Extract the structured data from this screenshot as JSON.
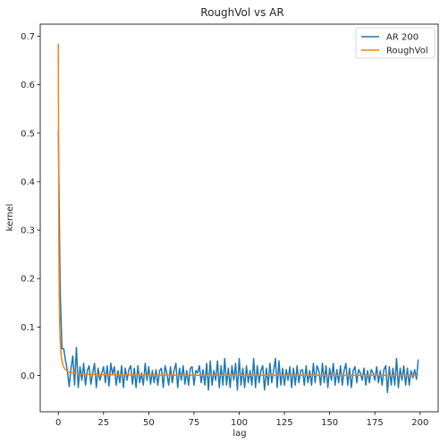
{
  "chart_data": {
    "type": "line",
    "title": "RoughVol vs AR",
    "xlabel": "lag",
    "ylabel": "kernel",
    "xlim": [
      -10,
      210
    ],
    "ylim": [
      -0.075,
      0.725
    ],
    "xticks": [
      0,
      25,
      50,
      75,
      100,
      125,
      150,
      175,
      200
    ],
    "yticks": [
      0.0,
      0.1,
      0.2,
      0.3,
      0.4,
      0.5,
      0.6,
      0.7
    ],
    "ytick_labels": [
      "0.0",
      "0.1",
      "0.2",
      "0.3",
      "0.4",
      "0.5",
      "0.6",
      "0.7"
    ],
    "grid": false,
    "legend_position": "top-right",
    "series": [
      {
        "name": "AR 200",
        "color": "#1f77b4",
        "x": [
          0,
          1,
          2,
          3,
          4,
          5,
          6,
          7,
          8,
          9,
          10,
          11,
          12,
          13,
          14,
          15,
          16,
          17,
          18,
          19,
          20,
          21,
          22,
          23,
          24,
          25,
          26,
          27,
          28,
          29,
          30,
          31,
          32,
          33,
          34,
          35,
          36,
          37,
          38,
          39,
          40,
          41,
          42,
          43,
          44,
          45,
          46,
          47,
          48,
          49,
          50,
          51,
          52,
          53,
          54,
          55,
          56,
          57,
          58,
          59,
          60,
          61,
          62,
          63,
          64,
          65,
          66,
          67,
          68,
          69,
          70,
          71,
          72,
          73,
          74,
          75,
          76,
          77,
          78,
          79,
          80,
          81,
          82,
          83,
          84,
          85,
          86,
          87,
          88,
          89,
          90,
          91,
          92,
          93,
          94,
          95,
          96,
          97,
          98,
          99,
          100,
          101,
          102,
          103,
          104,
          105,
          106,
          107,
          108,
          109,
          110,
          111,
          112,
          113,
          114,
          115,
          116,
          117,
          118,
          119,
          120,
          121,
          122,
          123,
          124,
          125,
          126,
          127,
          128,
          129,
          130,
          131,
          132,
          133,
          134,
          135,
          136,
          137,
          138,
          139,
          140,
          141,
          142,
          143,
          144,
          145,
          146,
          147,
          148,
          149,
          150,
          151,
          152,
          153,
          154,
          155,
          156,
          157,
          158,
          159,
          160,
          161,
          162,
          163,
          164,
          165,
          166,
          167,
          168,
          169,
          170,
          171,
          172,
          173,
          174,
          175,
          176,
          177,
          178,
          179,
          180,
          181,
          182,
          183,
          184,
          185,
          186,
          187,
          188,
          189,
          190,
          191,
          192,
          193,
          194,
          195,
          196,
          197,
          198,
          199
        ],
        "y": [
          0.505,
          0.18,
          0.055,
          0.055,
          0.03,
          0.01,
          -0.023,
          0.015,
          0.04,
          -0.02,
          0.058,
          -0.025,
          0.018,
          -0.01,
          0.025,
          -0.02,
          0.01,
          0.02,
          -0.018,
          0.005,
          0.025,
          -0.025,
          0.015,
          -0.01,
          0.005,
          0.018,
          -0.015,
          0.02,
          -0.022,
          0.025,
          0.002,
          0.018,
          -0.02,
          0.01,
          -0.015,
          0.02,
          -0.025,
          0.015,
          -0.01,
          0.012,
          0.02,
          -0.018,
          0.015,
          -0.025,
          0.02,
          -0.015,
          0.005,
          -0.02,
          0.025,
          -0.01,
          0.018,
          -0.018,
          0.01,
          -0.015,
          0.012,
          -0.02,
          0.01,
          0.015,
          -0.025,
          0.02,
          0.005,
          -0.02,
          0.018,
          -0.015,
          0.01,
          0.025,
          -0.025,
          0.015,
          -0.01,
          0.02,
          -0.018,
          0.01,
          -0.02,
          0.015,
          0.018,
          -0.02,
          0.01,
          0.005,
          0.02,
          -0.015,
          0.012,
          -0.02,
          0.025,
          -0.03,
          0.03,
          -0.02,
          0.01,
          -0.01,
          0.03,
          -0.025,
          0.02,
          -0.02,
          0.035,
          -0.02,
          0.015,
          -0.025,
          0.02,
          -0.01,
          0.025,
          -0.03,
          0.035,
          -0.02,
          0.015,
          -0.025,
          0.02,
          -0.015,
          0.01,
          -0.02,
          0.035,
          -0.025,
          0.02,
          -0.015,
          0.01,
          0.02,
          -0.03,
          0.015,
          -0.02,
          0.025,
          -0.015,
          0.01,
          0.035,
          -0.025,
          0.03,
          -0.02,
          0.015,
          -0.02,
          0.012,
          -0.01,
          0.018,
          -0.025,
          0.015,
          -0.02,
          0.02,
          -0.015,
          0.01,
          0.012,
          -0.02,
          0.02,
          -0.015,
          0.01,
          -0.02,
          0.025,
          -0.015,
          0.02,
          0.01,
          -0.02,
          0.025,
          -0.015,
          0.02,
          -0.025,
          0.015,
          -0.01,
          0.025,
          -0.02,
          0.012,
          -0.015,
          0.02,
          -0.02,
          0.01,
          0.025,
          -0.02,
          0.015,
          -0.025,
          0.01,
          0.018,
          -0.015,
          0.012,
          0.005,
          -0.01,
          0.015,
          -0.02,
          0.01,
          -0.015,
          0.012,
          0.005,
          -0.01,
          0.018,
          -0.015,
          0.01,
          -0.02,
          0.012,
          0.02,
          -0.035,
          0.018,
          -0.02,
          0.015,
          -0.02,
          0.035,
          -0.025,
          0.015,
          -0.01,
          0.02,
          -0.02,
          0.015,
          -0.02,
          0.01,
          -0.005,
          0.012,
          -0.008,
          0.033
        ]
      },
      {
        "name": "RoughVol",
        "color": "#ff7f0e",
        "x": [
          0,
          0.25,
          0.5,
          0.75,
          1,
          1.5,
          2,
          2.5,
          3,
          3.5,
          4,
          5,
          6,
          7,
          8,
          9,
          10,
          12,
          14,
          16,
          18,
          20,
          25,
          30,
          40,
          50,
          60,
          80,
          100,
          120,
          140,
          160,
          180,
          199
        ],
        "y": [
          0.685,
          0.3,
          0.17,
          0.11,
          0.075,
          0.045,
          0.03,
          0.022,
          0.017,
          0.014,
          0.012,
          0.009,
          0.007,
          0.006,
          0.005,
          0.0045,
          0.004,
          0.0033,
          0.0028,
          0.0024,
          0.0021,
          0.0019,
          0.0015,
          0.0012,
          0.0009,
          0.0007,
          0.0006,
          0.0004,
          0.0003,
          0.0002,
          0.0002,
          0.0001,
          0.0001,
          0.0001
        ]
      }
    ]
  }
}
